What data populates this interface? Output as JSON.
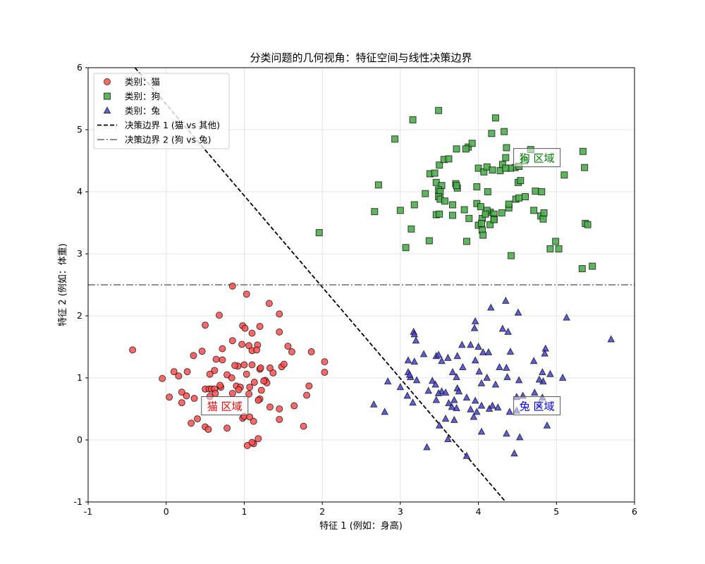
{
  "chart_data": {
    "type": "scatter",
    "title": "分类问题的几何视角：特征空间与线性决策边界",
    "xlabel": "特征 1 (例如：身高)",
    "ylabel": "特征 2 (例如：体重)",
    "xlim": [
      -1,
      6
    ],
    "ylim": [
      -1,
      6
    ],
    "xticks": [
      -1,
      0,
      1,
      2,
      3,
      4,
      5,
      6
    ],
    "yticks": [
      -1,
      0,
      1,
      2,
      3,
      4,
      5,
      6
    ],
    "grid": true,
    "legend_position": "upper left",
    "series": [
      {
        "name": "类别：猫",
        "marker": "circle",
        "color": "#ff4d4d",
        "edge": "#000000",
        "points": [
          [
            -0.43,
            1.45
          ],
          [
            0.85,
            2.48
          ],
          [
            1.03,
            2.35
          ],
          [
            1.32,
            2.2
          ],
          [
            0.68,
            2.01
          ],
          [
            1.45,
            2.03
          ],
          [
            0.5,
            1.85
          ],
          [
            0.98,
            1.84
          ],
          [
            1.01,
            1.8
          ],
          [
            1.2,
            1.83
          ],
          [
            1.1,
            1.72
          ],
          [
            1.45,
            1.74
          ],
          [
            0.85,
            1.6
          ],
          [
            0.72,
            1.47
          ],
          [
            0.97,
            1.54
          ],
          [
            1.06,
            1.52
          ],
          [
            1.17,
            1.53
          ],
          [
            1.1,
            1.44
          ],
          [
            1.16,
            1.45
          ],
          [
            1.56,
            1.51
          ],
          [
            1.61,
            1.42
          ],
          [
            1.86,
            1.42
          ],
          [
            2.03,
            1.26
          ],
          [
            2.03,
            1.09
          ],
          [
            0.35,
            1.36
          ],
          [
            0.46,
            1.43
          ],
          [
            0.64,
            1.3
          ],
          [
            0.72,
            1.29
          ],
          [
            0.92,
            1.19
          ],
          [
            0.88,
            1.2
          ],
          [
            1.0,
            1.21
          ],
          [
            1.1,
            1.21
          ],
          [
            1.2,
            1.14
          ],
          [
            1.33,
            1.16
          ],
          [
            1.48,
            1.18
          ],
          [
            1.51,
            1.22
          ],
          [
            0.1,
            1.1
          ],
          [
            0.16,
            1.03
          ],
          [
            0.27,
            1.1
          ],
          [
            0.62,
            1.12
          ],
          [
            0.56,
            1.06
          ],
          [
            0.78,
            1.05
          ],
          [
            0.84,
            1.0
          ],
          [
            1.03,
            1.06
          ],
          [
            1.21,
            1.16
          ],
          [
            1.37,
            1.08
          ],
          [
            1.27,
            0.96
          ],
          [
            0.2,
            0.77
          ],
          [
            0.26,
            0.71
          ],
          [
            0.36,
            0.67
          ],
          [
            0.5,
            0.82
          ],
          [
            0.55,
            0.82
          ],
          [
            0.58,
            0.82
          ],
          [
            0.62,
            0.82
          ],
          [
            0.7,
            0.85
          ],
          [
            0.69,
            0.88
          ],
          [
            0.9,
            0.87
          ],
          [
            0.95,
            0.85
          ],
          [
            1.07,
            0.85
          ],
          [
            1.22,
            0.8
          ],
          [
            1.29,
            0.92
          ],
          [
            1.25,
            0.95
          ],
          [
            1.13,
            0.93
          ],
          [
            1.83,
            0.87
          ],
          [
            1.8,
            0.72
          ],
          [
            0.56,
            0.7
          ],
          [
            0.63,
            0.75
          ],
          [
            0.85,
            0.75
          ],
          [
            0.93,
            0.81
          ],
          [
            1.06,
            0.74
          ],
          [
            1.2,
            0.66
          ],
          [
            1.18,
            0.64
          ],
          [
            -0.05,
            0.99
          ],
          [
            0.04,
            0.69
          ],
          [
            0.2,
            0.6
          ],
          [
            1.33,
            0.53
          ],
          [
            1.45,
            0.5
          ],
          [
            1.64,
            0.55
          ],
          [
            0.32,
            0.27
          ],
          [
            0.4,
            0.34
          ],
          [
            0.5,
            0.21
          ],
          [
            0.54,
            0.17
          ],
          [
            0.78,
            0.19
          ],
          [
            0.98,
            0.35
          ],
          [
            1.0,
            0.38
          ],
          [
            1.07,
            0.37
          ],
          [
            1.12,
            0.3
          ],
          [
            1.45,
            0.33
          ],
          [
            1.76,
            0.22
          ],
          [
            1.04,
            -0.09
          ],
          [
            1.12,
            -0.06
          ],
          [
            1.1,
            -0.04
          ],
          [
            1.18,
            0.02
          ]
        ]
      },
      {
        "name": "类别：狗",
        "marker": "square",
        "color": "#4daf4d",
        "edge": "#000000",
        "points": [
          [
            3.49,
            5.31
          ],
          [
            3.16,
            5.16
          ],
          [
            4.22,
            5.19
          ],
          [
            4.17,
            4.94
          ],
          [
            4.33,
            4.97
          ],
          [
            2.93,
            4.85
          ],
          [
            3.87,
            4.72
          ],
          [
            4.36,
            4.71
          ],
          [
            3.92,
            4.78
          ],
          [
            4.67,
            4.68
          ],
          [
            5.34,
            4.65
          ],
          [
            3.5,
            4.43
          ],
          [
            3.56,
            4.52
          ],
          [
            3.62,
            4.53
          ],
          [
            3.72,
            4.69
          ],
          [
            3.84,
            4.69
          ],
          [
            4.0,
            4.38
          ],
          [
            4.07,
            4.32
          ],
          [
            4.11,
            4.4
          ],
          [
            4.18,
            4.35
          ],
          [
            4.28,
            4.34
          ],
          [
            4.31,
            4.44
          ],
          [
            4.35,
            4.55
          ],
          [
            4.47,
            4.39
          ],
          [
            4.52,
            4.41
          ],
          [
            4.41,
            4.38
          ],
          [
            4.35,
            4.38
          ],
          [
            4.59,
            4.5
          ],
          [
            3.38,
            4.29
          ],
          [
            3.44,
            4.3
          ],
          [
            3.46,
            4.15
          ],
          [
            3.53,
            4.1
          ],
          [
            3.71,
            4.13
          ],
          [
            3.73,
            4.06
          ],
          [
            3.72,
            4.1
          ],
          [
            3.49,
            4.03
          ],
          [
            3.51,
            4.0
          ],
          [
            3.98,
            4.08
          ],
          [
            4.12,
            4.0
          ],
          [
            4.51,
            4.15
          ],
          [
            4.54,
            4.18
          ],
          [
            4.73,
            4.01
          ],
          [
            4.81,
            4.0
          ],
          [
            5.1,
            4.27
          ],
          [
            5.36,
            4.39
          ],
          [
            2.72,
            4.11
          ],
          [
            3.32,
            3.97
          ],
          [
            3.49,
            3.92
          ],
          [
            3.51,
            3.88
          ],
          [
            3.46,
            3.63
          ],
          [
            3.57,
            3.85
          ],
          [
            3.18,
            3.79
          ],
          [
            3.0,
            3.7
          ],
          [
            2.67,
            3.68
          ],
          [
            3.67,
            3.62
          ],
          [
            3.82,
            3.71
          ],
          [
            3.98,
            3.81
          ],
          [
            4.03,
            3.76
          ],
          [
            4.15,
            3.67
          ],
          [
            4.2,
            3.64
          ],
          [
            4.11,
            3.7
          ],
          [
            4.2,
            3.56
          ],
          [
            4.3,
            3.66
          ],
          [
            4.05,
            3.57
          ],
          [
            4.09,
            3.64
          ],
          [
            4.48,
            3.88
          ],
          [
            4.52,
            3.9
          ],
          [
            4.6,
            3.92
          ],
          [
            4.71,
            3.7
          ],
          [
            4.8,
            3.61
          ],
          [
            4.83,
            3.56
          ],
          [
            4.84,
            3.66
          ],
          [
            4.39,
            3.74
          ],
          [
            4.39,
            3.8
          ],
          [
            3.5,
            3.64
          ],
          [
            3.67,
            3.79
          ],
          [
            4.0,
            3.46
          ],
          [
            4.04,
            3.49
          ],
          [
            4.15,
            3.47
          ],
          [
            4.2,
            3.55
          ],
          [
            4.05,
            3.38
          ],
          [
            4.06,
            3.3
          ],
          [
            3.88,
            3.57
          ],
          [
            3.14,
            3.4
          ],
          [
            3.07,
            3.1
          ],
          [
            3.37,
            3.21
          ],
          [
            3.85,
            3.2
          ],
          [
            4.42,
            2.97
          ],
          [
            4.92,
            3.08
          ],
          [
            5.03,
            3.08
          ],
          [
            4.99,
            3.2
          ],
          [
            5.33,
            2.76
          ],
          [
            5.46,
            2.8
          ],
          [
            5.37,
            3.49
          ],
          [
            5.4,
            3.47
          ],
          [
            1.96,
            3.34
          ]
        ]
      },
      {
        "name": "类别：兔",
        "marker": "triangle",
        "color": "#4d4ddb",
        "edge": "#000000",
        "points": [
          [
            4.35,
            2.24
          ],
          [
            4.16,
            2.13
          ],
          [
            4.51,
            2.05
          ],
          [
            3.96,
            1.91
          ],
          [
            3.95,
            1.8
          ],
          [
            4.31,
            1.79
          ],
          [
            4.38,
            1.74
          ],
          [
            5.13,
            1.97
          ],
          [
            5.7,
            1.62
          ],
          [
            3.17,
            1.74
          ],
          [
            3.18,
            1.7
          ],
          [
            3.2,
            1.6
          ],
          [
            3.79,
            1.53
          ],
          [
            3.9,
            1.53
          ],
          [
            4.0,
            1.5
          ],
          [
            4.06,
            1.41
          ],
          [
            4.13,
            1.41
          ],
          [
            4.41,
            1.42
          ],
          [
            4.86,
            1.47
          ],
          [
            4.85,
            1.39
          ],
          [
            3.3,
            1.38
          ],
          [
            3.1,
            1.28
          ],
          [
            3.18,
            1.26
          ],
          [
            3.46,
            1.35
          ],
          [
            3.61,
            1.32
          ],
          [
            3.73,
            1.35
          ],
          [
            3.53,
            1.27
          ],
          [
            3.49,
            1.37
          ],
          [
            3.8,
            1.17
          ],
          [
            3.96,
            1.28
          ],
          [
            4.01,
            1.1
          ],
          [
            4.27,
            1.17
          ],
          [
            4.36,
            1.16
          ],
          [
            4.37,
            1.01
          ],
          [
            4.52,
            0.96
          ],
          [
            4.83,
            0.94
          ],
          [
            4.78,
            0.97
          ],
          [
            4.82,
            1.09
          ],
          [
            4.71,
            1.27
          ],
          [
            5.08,
            1.0
          ],
          [
            4.92,
            1.06
          ],
          [
            2.84,
            0.94
          ],
          [
            3.1,
            1.09
          ],
          [
            3.13,
            1.01
          ],
          [
            3.12,
            1.05
          ],
          [
            3.21,
            0.96
          ],
          [
            3.41,
            0.95
          ],
          [
            3.67,
            1.09
          ],
          [
            3.72,
            1.01
          ],
          [
            4.04,
            0.91
          ],
          [
            4.11,
            1.0
          ],
          [
            4.22,
            0.89
          ],
          [
            3.73,
            0.83
          ],
          [
            3.53,
            0.78
          ],
          [
            3.45,
            0.89
          ],
          [
            3.0,
            0.85
          ],
          [
            3.09,
            0.71
          ],
          [
            3.36,
            0.79
          ],
          [
            3.46,
            0.64
          ],
          [
            3.69,
            0.64
          ],
          [
            3.62,
            0.59
          ],
          [
            3.66,
            0.53
          ],
          [
            3.72,
            0.51
          ],
          [
            3.9,
            0.49
          ],
          [
            3.98,
            0.45
          ],
          [
            4.04,
            0.55
          ],
          [
            4.14,
            0.5
          ],
          [
            4.18,
            0.55
          ],
          [
            4.25,
            0.52
          ],
          [
            4.49,
            0.47
          ],
          [
            4.4,
            0.45
          ],
          [
            4.57,
            0.71
          ],
          [
            4.72,
            0.76
          ],
          [
            4.78,
            0.57
          ],
          [
            4.82,
            0.68
          ],
          [
            4.49,
            0.69
          ],
          [
            3.96,
            0.63
          ],
          [
            3.85,
            0.68
          ],
          [
            3.75,
            0.78
          ],
          [
            3.58,
            0.76
          ],
          [
            3.49,
            0.75
          ],
          [
            3.16,
            0.6
          ],
          [
            2.66,
            0.57
          ],
          [
            2.8,
            0.45
          ],
          [
            3.5,
            0.23
          ],
          [
            3.69,
            0.32
          ],
          [
            3.58,
            0.34
          ],
          [
            3.94,
            0.37
          ],
          [
            3.61,
            0.01
          ],
          [
            4.04,
            0.13
          ],
          [
            4.36,
            0.1
          ],
          [
            4.88,
            0.23
          ],
          [
            3.34,
            -0.12
          ],
          [
            4.46,
            -0.22
          ],
          [
            3.85,
            -0.26
          ],
          [
            4.53,
            0.04
          ]
        ]
      }
    ],
    "boundaries": [
      {
        "name": "决策边界 1 (猫 vs 其他)",
        "style": "dashed",
        "color": "#000000",
        "x": [
          -0.4,
          4.35
        ],
        "y": [
          6.0,
          -1.0
        ]
      },
      {
        "name": "决策边界 2 (狗 vs 兔)",
        "style": "dashdot",
        "color": "#808080",
        "x": [
          -1,
          6
        ],
        "y": [
          2.5,
          2.5
        ]
      }
    ],
    "annotations": [
      {
        "text": "猫 区域",
        "x": 0.75,
        "y": 0.55,
        "color": "#ff0000"
      },
      {
        "text": "狗 区域",
        "x": 4.75,
        "y": 4.55,
        "color": "#008000"
      },
      {
        "text": "兔 区域",
        "x": 4.75,
        "y": 0.55,
        "color": "#0000ff"
      }
    ]
  },
  "legend": {
    "items": [
      {
        "label": "类别：猫",
        "marker": "circle",
        "color": "#ff4d4d"
      },
      {
        "label": "类别：狗",
        "marker": "square",
        "color": "#4daf4d"
      },
      {
        "label": "类别：兔",
        "marker": "triangle",
        "color": "#4d4ddb"
      },
      {
        "label": "决策边界 1 (猫 vs 其他)",
        "marker": "dashed",
        "color": "#000000"
      },
      {
        "label": "决策边界 2 (狗 vs 兔)",
        "marker": "dashdot",
        "color": "#808080"
      }
    ]
  }
}
